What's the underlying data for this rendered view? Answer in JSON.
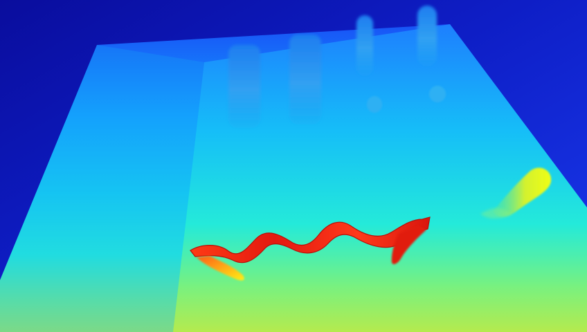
{
  "image": {
    "kind": "depth-map",
    "colormap": "jet",
    "palette": {
      "far_dark_blue": "#0B0FB6",
      "blue": "#1546F2",
      "cyan": "#16C8F0",
      "aqua": "#2EF0D8",
      "green": "#86F06E",
      "yellow": "#E8F21A",
      "orange": "#FF8A10",
      "red": "#E21B10"
    },
    "objects": [
      "background-wall",
      "table-surface",
      "inner-table-surface",
      "tall-cylinder-left",
      "tall-cylinder-middle",
      "tall-cylinder-right",
      "tall-cylinder-far-right",
      "small-stub-left",
      "small-stub-right",
      "wavy-rope",
      "right-edge-object"
    ]
  }
}
